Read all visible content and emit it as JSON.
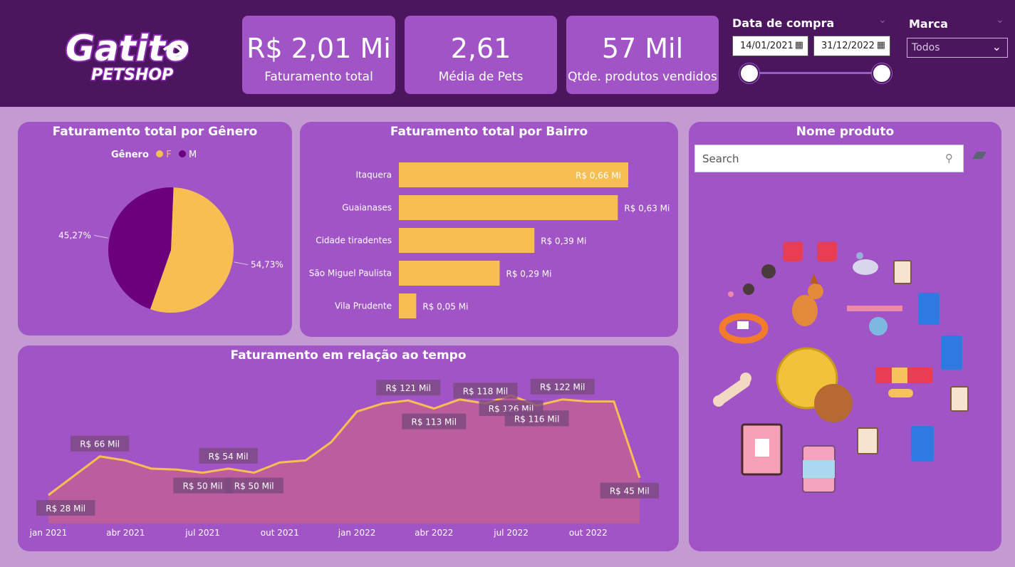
{
  "brand": {
    "logo_text": "Gatito",
    "logo_sub": "PETSHOP"
  },
  "kpis": [
    {
      "value": "R$ 2,01 Mi",
      "label": "Faturamento total"
    },
    {
      "value": "2,61",
      "label": "Média de Pets"
    },
    {
      "value": "57 Mil",
      "label": "Qtde. produtos vendidos"
    }
  ],
  "filters": {
    "date": {
      "title": "Data de compra",
      "start": "14/01/2021",
      "end": "31/12/2022"
    },
    "brand": {
      "title": "Marca",
      "selected": "Todos"
    }
  },
  "gender_card": {
    "title": "Faturamento total por Gênero",
    "legend_title": "Gênero",
    "legend_items": [
      "F",
      "M"
    ]
  },
  "bairro_card": {
    "title": "Faturamento total por Bairro"
  },
  "time_card": {
    "title": "Faturamento em relação ao tempo"
  },
  "products_card": {
    "title": "Nome produto",
    "search_placeholder": "Search"
  },
  "colors": {
    "F": "#f7bf52",
    "M": "#6b007a",
    "accent": "#a154c6",
    "header": "#4b165e"
  },
  "chart_data": [
    {
      "type": "pie",
      "title": "Faturamento total por Gênero",
      "legend": "top-center",
      "slices": [
        {
          "name": "F",
          "value": 54.73,
          "label": "54,73%"
        },
        {
          "name": "M",
          "value": 45.27,
          "label": "45,27%"
        }
      ]
    },
    {
      "type": "bar",
      "orientation": "horizontal",
      "title": "Faturamento total por Bairro",
      "categories": [
        "Itaquera",
        "Guaianases",
        "Cidade tiradentes",
        "São Miguel Paulista",
        "Vila Prudente"
      ],
      "values": [
        0.66,
        0.63,
        0.39,
        0.29,
        0.05
      ],
      "labels": [
        "R$ 0,66 Mi",
        "R$ 0,63 Mi",
        "R$ 0,39 Mi",
        "R$ 0,29 Mi",
        "R$ 0,05 Mi"
      ],
      "unit": "R$ Mi"
    },
    {
      "type": "area",
      "title": "Faturamento em relação ao tempo",
      "x": [
        "2021-01",
        "2021-02",
        "2021-03",
        "2021-04",
        "2021-05",
        "2021-06",
        "2021-07",
        "2021-08",
        "2021-09",
        "2021-10",
        "2021-11",
        "2021-12",
        "2022-01",
        "2022-02",
        "2022-03",
        "2022-04",
        "2022-05",
        "2022-06",
        "2022-07",
        "2022-08",
        "2022-09",
        "2022-10",
        "2022-11",
        "2022-12"
      ],
      "values": [
        28,
        47,
        66,
        62,
        54,
        53,
        50,
        54,
        50,
        60,
        62,
        80,
        110,
        118,
        121,
        113,
        122,
        118,
        126,
        116,
        122,
        120,
        120,
        45
      ],
      "tick_labels": [
        "jan 2021",
        "abr 2021",
        "jul 2021",
        "out 2021",
        "jan 2022",
        "abr 2022",
        "jul 2022",
        "out 2022"
      ],
      "data_labels": [
        {
          "index": 0,
          "text": "R$ 28 Mil"
        },
        {
          "index": 2,
          "text": "R$ 66 Mil"
        },
        {
          "index": 6,
          "text": "R$ 50 Mil"
        },
        {
          "index": 7,
          "text": "R$ 54 Mil"
        },
        {
          "index": 8,
          "text": "R$ 50 Mil"
        },
        {
          "index": 14,
          "text": "R$ 121 Mil"
        },
        {
          "index": 15,
          "text": "R$ 113 Mil"
        },
        {
          "index": 17,
          "text": "R$ 118 Mil"
        },
        {
          "index": 18,
          "text": "R$ 126 Mil"
        },
        {
          "index": 19,
          "text": "R$ 116 Mil"
        },
        {
          "index": 20,
          "text": "R$ 122 Mil"
        },
        {
          "index": 23,
          "text": "R$ 45 Mil"
        }
      ],
      "unit": "R$ Mil",
      "ylim": [
        0,
        140
      ]
    }
  ]
}
